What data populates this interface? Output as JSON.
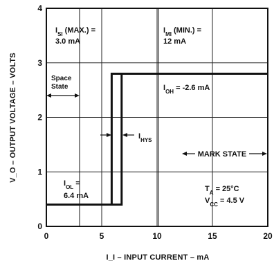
{
  "chart_data": {
    "type": "line",
    "title": "",
    "xlabel": "I_I – INPUT CURRENT – mA",
    "ylabel": "V_O – OUTPUT VOLTAGE – VOLTS",
    "xlim": [
      0,
      20
    ],
    "ylim": [
      0,
      4
    ],
    "x_ticks": [
      0,
      5,
      10,
      15,
      20
    ],
    "y_ticks": [
      0,
      1,
      2,
      3,
      4
    ],
    "grid": true,
    "series": [
      {
        "name": "",
        "points": [
          [
            0,
            0.4
          ],
          [
            6.8,
            0.4
          ],
          [
            6.8,
            2.8
          ],
          [
            20,
            2.8
          ]
        ]
      },
      {
        "name": "",
        "points": [
          [
            0,
            0.4
          ],
          [
            5.9,
            0.4
          ],
          [
            5.9,
            2.8
          ],
          [
            20,
            2.8
          ]
        ]
      }
    ],
    "annotations": {
      "isi_line1": "I",
      "isi_sub": "SI",
      "isi_line1_rest": " (MAX.) =",
      "isi_line2": "3.0 mA",
      "imi_line1": "I",
      "imi_sub": "MI",
      "imi_line1_rest": " (MIN.) =",
      "imi_line2": "12 mA",
      "space_line1": "Space",
      "space_line2": "State",
      "ioh": "I",
      "ioh_sub": "OH",
      "ioh_rest": " = -2.6 mA",
      "ihys": "I",
      "ihys_sub": "HYS",
      "mark_state": "MARK STATE",
      "iol": "I",
      "iol_sub": "OL",
      "iol_rest": " =",
      "iol_line2": "6.4 mA",
      "ta": "T",
      "ta_sub": "A",
      "ta_rest": " = 25°C",
      "vcc": "V",
      "vcc_sub": "CC",
      "vcc_rest": " = 4.5 V"
    }
  }
}
